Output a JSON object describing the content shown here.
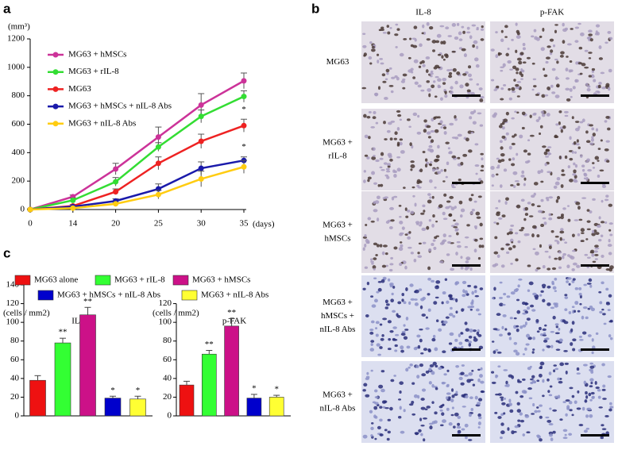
{
  "panel_labels": [
    "a",
    "b",
    "c"
  ],
  "histology": {
    "columns": [
      "IL-8",
      "p-FAK"
    ],
    "rows": [
      [
        "MG63"
      ],
      [
        "MG63 +",
        "rIL-8"
      ],
      [
        "MG63 +",
        "hMSCs"
      ],
      [
        "MG63  +",
        "hMSCs +",
        "nIL-8 Abs"
      ],
      [
        "MG63 +",
        "nIL-8 Abs"
      ]
    ]
  },
  "chart_data": [
    {
      "type": "line",
      "y_label": "(mm³)",
      "x_label": "(days)",
      "categories": [
        "0",
        "14",
        "20",
        "25",
        "30",
        "35"
      ],
      "ylim": [
        0,
        1200
      ],
      "yticks": [
        0,
        200,
        400,
        600,
        800,
        1000,
        1200
      ],
      "series": [
        {
          "name": "MG63 + hMSCs",
          "color": "#cc3399",
          "values": [
            0,
            90,
            285,
            510,
            735,
            905
          ],
          "errors": [
            5,
            12,
            40,
            70,
            80,
            55
          ]
        },
        {
          "name": "MG63 + rIL-8",
          "color": "#33dd33",
          "values": [
            0,
            65,
            195,
            440,
            655,
            795
          ],
          "errors": [
            5,
            15,
            30,
            30,
            45,
            40
          ]
        },
        {
          "name": "MG63",
          "color": "#ee2222",
          "values": [
            0,
            25,
            125,
            325,
            480,
            590
          ],
          "errors": [
            3,
            10,
            20,
            45,
            50,
            45
          ],
          "markers": [
            null,
            null,
            null,
            null,
            null,
            "*"
          ]
        },
        {
          "name": "MG63 + hMSCs + nIL-8 Abs",
          "color": "#1a1aaa",
          "values": [
            0,
            20,
            60,
            145,
            290,
            345
          ],
          "errors": [
            3,
            5,
            15,
            35,
            45,
            25
          ],
          "markers": [
            null,
            null,
            null,
            null,
            null,
            "*"
          ]
        },
        {
          "name": "MG63 + nIL-8 Abs",
          "color": "#ffcc11",
          "values": [
            0,
            10,
            40,
            105,
            215,
            300
          ],
          "errors": [
            3,
            5,
            10,
            30,
            55,
            45
          ]
        }
      ]
    },
    {
      "type": "bar",
      "title": "IL-8",
      "y_label": "(cells / mm2)",
      "categories": [
        "MG63 alone",
        "MG63 + rIL-8",
        "MG63 +  hMSCs",
        "MG63 + hMSCs + nIL-8 Abs",
        "MG63 + nIL-8 Abs"
      ],
      "colors": [
        "#ee1111",
        "#33ff33",
        "#cc1188",
        "#0000cc",
        "#ffff33"
      ],
      "values": [
        38,
        78,
        108,
        19,
        18
      ],
      "errors": [
        5,
        5,
        8,
        2,
        3
      ],
      "annotations": [
        null,
        "**",
        "**",
        "*",
        "*"
      ],
      "ylim": [
        0,
        140
      ],
      "yticks": [
        0,
        20,
        40,
        60,
        80,
        100,
        120,
        140
      ]
    },
    {
      "type": "bar",
      "title": "p-FAK",
      "y_label": "(cells / mm2)",
      "colors": [
        "#ee1111",
        "#33ff33",
        "#cc1188",
        "#0000cc",
        "#ffff33"
      ],
      "values": [
        33,
        66,
        96,
        19,
        20
      ],
      "errors": [
        4,
        4,
        8,
        4,
        2
      ],
      "annotations": [
        null,
        "**",
        "**",
        "*",
        "*"
      ],
      "ylim": [
        0,
        120
      ],
      "yticks": [
        0,
        20,
        40,
        60,
        80,
        100,
        120
      ]
    }
  ]
}
